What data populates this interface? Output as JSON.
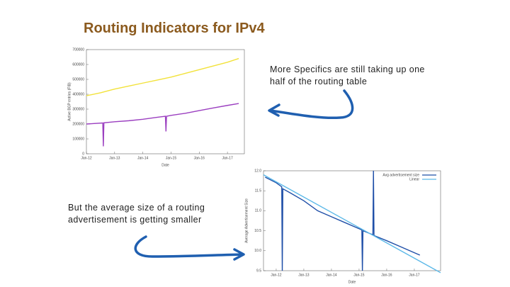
{
  "title": "Routing Indicators for IPv4",
  "note_top": [
    "More Specifics are still taking up one",
    "half of the routing table"
  ],
  "note_bottom": [
    "But the average size of a routing",
    "advertisement is getting smaller"
  ],
  "chart_data": [
    {
      "type": "line",
      "x_label": "Date",
      "y_label": "Active BGP entries (FIB)",
      "xlim": [
        2012,
        2017.6
      ],
      "ylim": [
        0,
        700000
      ],
      "xticks": [
        {
          "value": 2012,
          "label": "Jan-12"
        },
        {
          "value": 2013,
          "label": "Jan-13"
        },
        {
          "value": 2014,
          "label": "Jan-14"
        },
        {
          "value": 2015,
          "label": "Jan-15"
        },
        {
          "value": 2016,
          "label": "Jan-16"
        },
        {
          "value": 2017,
          "label": "Jan-17"
        }
      ],
      "yticks": [
        0,
        100000,
        200000,
        300000,
        400000,
        500000,
        600000,
        700000
      ],
      "series": [
        {
          "color": "#f2e23a",
          "x": [
            2012,
            2012.5,
            2013,
            2013.5,
            2014,
            2014.5,
            2015,
            2015.5,
            2016,
            2016.5,
            2017,
            2017.4
          ],
          "values": [
            390000,
            410000,
            435000,
            455000,
            475000,
            495000,
            515000,
            540000,
            565000,
            590000,
            615000,
            640000
          ]
        },
        {
          "color": "#9b3fc0",
          "x": [
            2012,
            2012.58,
            2012.6,
            2012.62,
            2013,
            2013.5,
            2014,
            2014.5,
            2014.8,
            2014.82,
            2014.84,
            2015,
            2015.5,
            2016,
            2016.5,
            2017,
            2017.4
          ],
          "values": [
            200000,
            207000,
            50000,
            208000,
            215000,
            222000,
            232000,
            245000,
            252000,
            150000,
            252000,
            258000,
            272000,
            290000,
            308000,
            325000,
            338000
          ]
        }
      ]
    },
    {
      "type": "line",
      "x_label": "Date",
      "y_label": "Average Advertisement Size",
      "xlim": [
        2011.54,
        2017.95
      ],
      "ylim": [
        9.5,
        12
      ],
      "xticks": [
        {
          "value": 2012,
          "label": "Jan-12"
        },
        {
          "value": 2013,
          "label": "Jan-13"
        },
        {
          "value": 2014,
          "label": "Jan-14"
        },
        {
          "value": 2015,
          "label": "Jan-15"
        },
        {
          "value": 2016,
          "label": "Jan-16"
        },
        {
          "value": 2017,
          "label": "Jan-17"
        }
      ],
      "yticks": [
        {
          "value": 9.5,
          "label": "9.5"
        },
        {
          "value": 10,
          "label": "10.0"
        },
        {
          "value": 10.5,
          "label": "10.5"
        },
        {
          "value": 11,
          "label": "11.0"
        },
        {
          "value": 11.5,
          "label": "11.5"
        },
        {
          "value": 12,
          "label": "12.0"
        }
      ],
      "series": [
        {
          "name": "Avg advertisement size",
          "color": "#1f4fa8",
          "x": [
            2011.6,
            2012,
            2012.2,
            2012.22,
            2012.24,
            2012.5,
            2013,
            2013.5,
            2014,
            2014.5,
            2015,
            2015.1,
            2015.12,
            2015.14,
            2015.5,
            2015.52,
            2015.54,
            2016,
            2016.5,
            2017,
            2017.2
          ],
          "values": [
            11.84,
            11.7,
            11.6,
            9.5,
            11.55,
            11.45,
            11.25,
            11.0,
            10.85,
            10.7,
            10.55,
            10.52,
            9.5,
            10.5,
            10.4,
            12.0,
            10.38,
            10.25,
            10.1,
            9.95,
            9.89
          ]
        },
        {
          "name": "Linear",
          "color": "#5bb8e8",
          "x": [
            2011.54,
            2017.95
          ],
          "values": [
            11.9,
            9.45
          ]
        }
      ]
    }
  ]
}
